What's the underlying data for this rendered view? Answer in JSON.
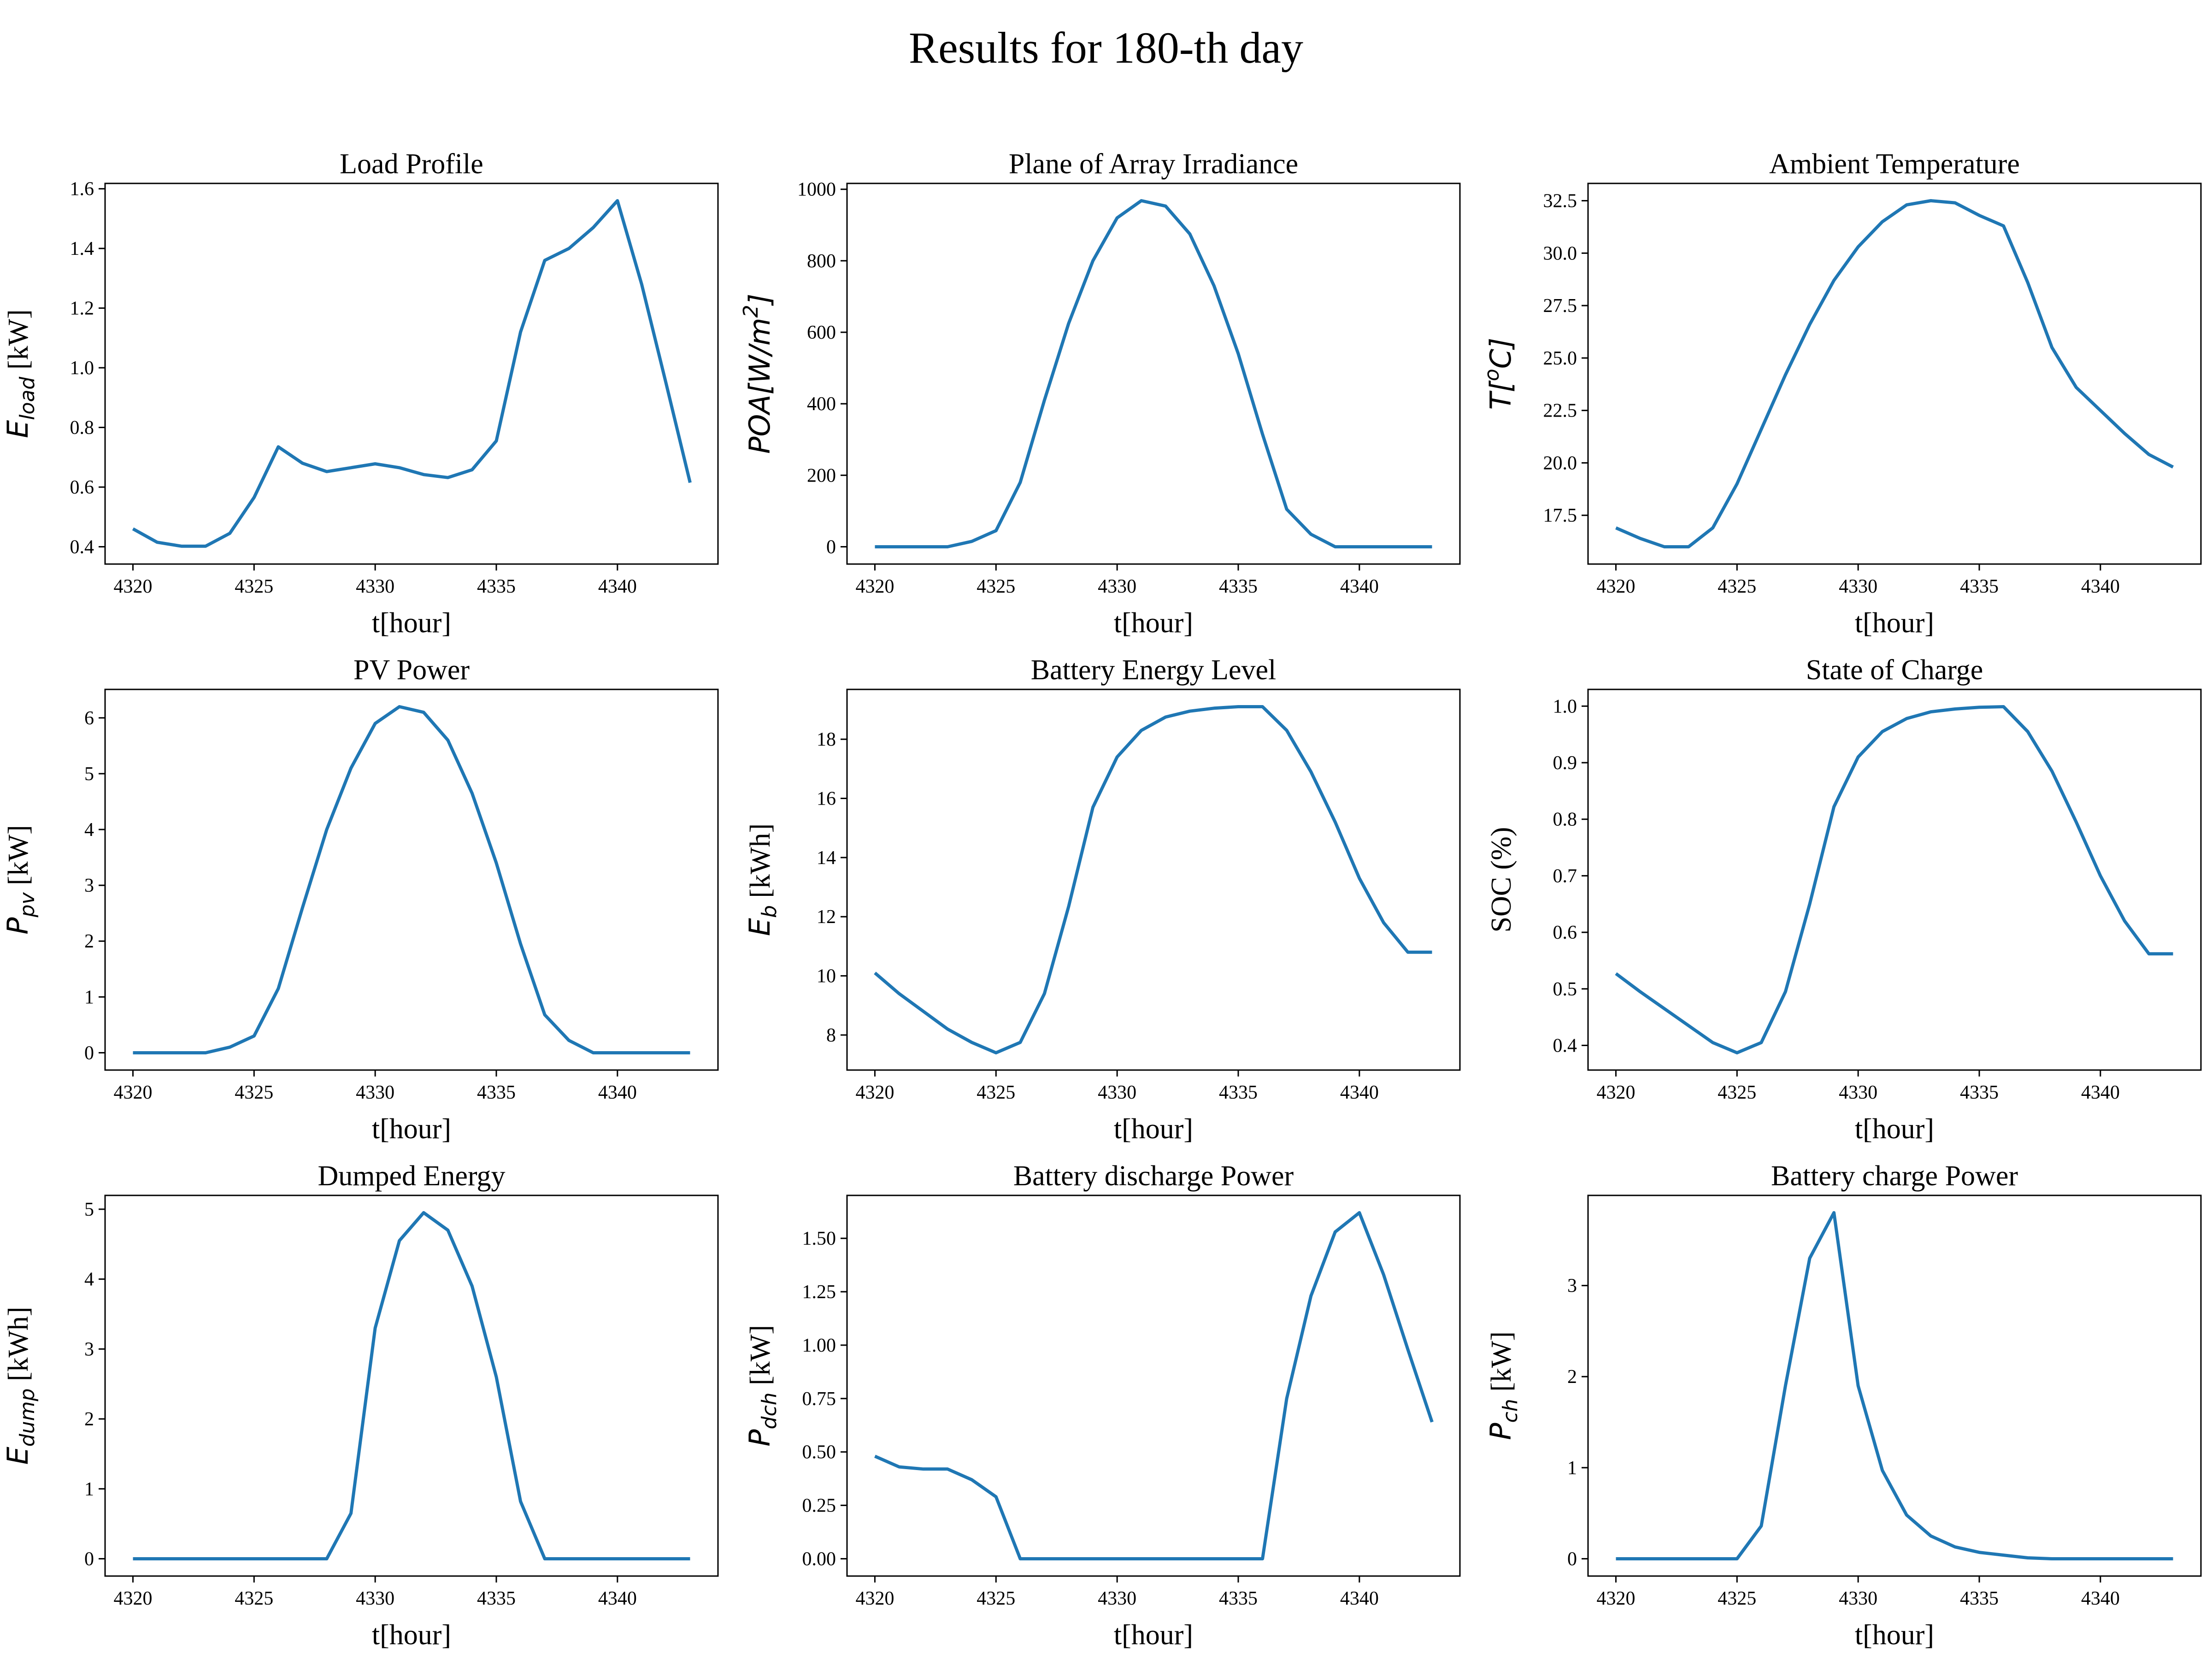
{
  "figure_title": "Results for 180-th day",
  "colors": {
    "line": "#1f77b4"
  },
  "chart_data": [
    {
      "type": "line",
      "title": "Load Profile",
      "xlabel": "t[hour]",
      "ylabel": {
        "main": "E",
        "sub": "load",
        "unit": " [kW]"
      },
      "x": [
        4320,
        4321,
        4322,
        4323,
        4324,
        4325,
        4326,
        4327,
        4328,
        4329,
        4330,
        4331,
        4332,
        4333,
        4334,
        4335,
        4336,
        4337,
        4338,
        4339,
        4340,
        4341,
        4342,
        4343
      ],
      "values": [
        0.46,
        0.415,
        0.402,
        0.402,
        0.445,
        0.565,
        0.735,
        0.68,
        0.652,
        0.665,
        0.678,
        0.665,
        0.642,
        0.632,
        0.658,
        0.755,
        1.12,
        1.36,
        1.4,
        1.47,
        1.56,
        1.28,
        0.95,
        0.615
      ],
      "xlim": [
        4318.85,
        4344.15
      ],
      "ylim": [
        0.342,
        1.618
      ],
      "xticks": [
        "4320",
        "4325",
        "4330",
        "4335",
        "4340"
      ],
      "yticks": [
        "0.4",
        "0.6",
        "0.8",
        "1.0",
        "1.2",
        "1.4",
        "1.6"
      ]
    },
    {
      "type": "line",
      "title": "Plane of Array Irradiance",
      "xlabel": "t[hour]",
      "ylabel": {
        "main": "POA[W/m",
        "sup": "2",
        "tail": "]"
      },
      "x": [
        4320,
        4321,
        4322,
        4323,
        4324,
        4325,
        4326,
        4327,
        4328,
        4329,
        4330,
        4331,
        4332,
        4333,
        4334,
        4335,
        4336,
        4337,
        4338,
        4339,
        4340,
        4341,
        4342,
        4343
      ],
      "values": [
        0,
        0,
        0,
        0,
        15,
        45,
        180,
        410,
        625,
        800,
        920,
        968,
        953,
        875,
        730,
        540,
        315,
        105,
        35,
        0,
        0,
        0,
        0,
        0
      ],
      "xlim": [
        4318.85,
        4344.15
      ],
      "ylim": [
        -48.4,
        1016.4
      ],
      "xticks": [
        "4320",
        "4325",
        "4330",
        "4335",
        "4340"
      ],
      "yticks": [
        "0",
        "200",
        "400",
        "600",
        "800",
        "1000"
      ]
    },
    {
      "type": "line",
      "title": "Ambient Temperature",
      "xlabel": "t[hour]",
      "ylabel": {
        "main": "T[",
        "sup": "o",
        "tail": "C]"
      },
      "x": [
        4320,
        4321,
        4322,
        4323,
        4324,
        4325,
        4326,
        4327,
        4328,
        4329,
        4330,
        4331,
        4332,
        4333,
        4334,
        4335,
        4336,
        4337,
        4338,
        4339,
        4340,
        4341,
        4342,
        4343
      ],
      "values": [
        16.9,
        16.4,
        16.0,
        16.0,
        16.9,
        19.0,
        21.6,
        24.2,
        26.6,
        28.7,
        30.3,
        31.5,
        32.3,
        32.5,
        32.4,
        31.8,
        31.3,
        28.6,
        25.5,
        23.6,
        22.5,
        21.4,
        20.4,
        19.8
      ],
      "xlim": [
        4318.85,
        4344.15
      ],
      "ylim": [
        15.175,
        33.325
      ],
      "xticks": [
        "4320",
        "4325",
        "4330",
        "4335",
        "4340"
      ],
      "yticks": [
        "17.5",
        "20.0",
        "22.5",
        "25.0",
        "27.5",
        "30.0",
        "32.5"
      ]
    },
    {
      "type": "line",
      "title": "PV Power",
      "xlabel": "t[hour]",
      "ylabel": {
        "main": "P",
        "sub": "pv",
        "unit": " [kW]"
      },
      "x": [
        4320,
        4321,
        4322,
        4323,
        4324,
        4325,
        4326,
        4327,
        4328,
        4329,
        4330,
        4331,
        4332,
        4333,
        4334,
        4335,
        4336,
        4337,
        4338,
        4339,
        4340,
        4341,
        4342,
        4343
      ],
      "values": [
        0,
        0,
        0,
        0,
        0.1,
        0.3,
        1.15,
        2.6,
        4.0,
        5.1,
        5.9,
        6.2,
        6.1,
        5.6,
        4.65,
        3.4,
        1.95,
        0.68,
        0.22,
        0,
        0,
        0,
        0,
        0
      ],
      "xlim": [
        4318.85,
        4344.15
      ],
      "ylim": [
        -0.31,
        6.51
      ],
      "xticks": [
        "4320",
        "4325",
        "4330",
        "4335",
        "4340"
      ],
      "yticks": [
        "0",
        "1",
        "2",
        "3",
        "4",
        "5",
        "6"
      ]
    },
    {
      "type": "line",
      "title": "Battery Energy Level",
      "xlabel": "t[hour]",
      "ylabel": {
        "main": "E",
        "sub": "b",
        "unit": " [kWh]"
      },
      "x": [
        4320,
        4321,
        4322,
        4323,
        4324,
        4325,
        4326,
        4327,
        4328,
        4329,
        4330,
        4331,
        4332,
        4333,
        4334,
        4335,
        4336,
        4337,
        4338,
        4339,
        4340,
        4341,
        4342,
        4343
      ],
      "values": [
        10.1,
        9.4,
        8.8,
        8.2,
        7.75,
        7.4,
        7.75,
        9.4,
        12.35,
        15.7,
        17.4,
        18.3,
        18.75,
        18.95,
        19.05,
        19.1,
        19.1,
        18.3,
        16.9,
        15.2,
        13.3,
        11.8,
        10.8,
        10.8
      ],
      "xlim": [
        4318.85,
        4344.15
      ],
      "ylim": [
        6.815,
        19.685
      ],
      "xticks": [
        "4320",
        "4325",
        "4330",
        "4335",
        "4340"
      ],
      "yticks": [
        "8",
        "10",
        "12",
        "14",
        "16",
        "18"
      ]
    },
    {
      "type": "line",
      "title": "State of Charge",
      "xlabel": "t[hour]",
      "ylabel": {
        "main": "SOC (%)"
      },
      "x": [
        4320,
        4321,
        4322,
        4323,
        4324,
        4325,
        4326,
        4327,
        4328,
        4329,
        4330,
        4331,
        4332,
        4333,
        4334,
        4335,
        4336,
        4337,
        4338,
        4339,
        4340,
        4341,
        4342,
        4343
      ],
      "values": [
        0.527,
        0.495,
        0.465,
        0.435,
        0.405,
        0.387,
        0.405,
        0.495,
        0.65,
        0.822,
        0.91,
        0.955,
        0.978,
        0.99,
        0.995,
        0.998,
        0.999,
        0.955,
        0.885,
        0.795,
        0.7,
        0.62,
        0.562,
        0.562
      ],
      "xlim": [
        4318.85,
        4344.15
      ],
      "ylim": [
        0.3564,
        1.0296
      ],
      "xticks": [
        "4320",
        "4325",
        "4330",
        "4335",
        "4340"
      ],
      "yticks": [
        "0.4",
        "0.5",
        "0.6",
        "0.7",
        "0.8",
        "0.9",
        "1.0"
      ]
    },
    {
      "type": "line",
      "title": "Dumped Energy",
      "xlabel": "t[hour]",
      "ylabel": {
        "main": "E",
        "sub": "dump",
        "unit": " [kWh]"
      },
      "x": [
        4320,
        4321,
        4322,
        4323,
        4324,
        4325,
        4326,
        4327,
        4328,
        4329,
        4330,
        4331,
        4332,
        4333,
        4334,
        4335,
        4336,
        4337,
        4338,
        4339,
        4340,
        4341,
        4342,
        4343
      ],
      "values": [
        0,
        0,
        0,
        0,
        0,
        0,
        0,
        0,
        0,
        0.65,
        3.3,
        4.55,
        4.95,
        4.7,
        3.9,
        2.6,
        0.82,
        0,
        0,
        0,
        0,
        0,
        0,
        0
      ],
      "xlim": [
        4318.85,
        4344.15
      ],
      "ylim": [
        -0.2475,
        5.1975
      ],
      "xticks": [
        "4320",
        "4325",
        "4330",
        "4335",
        "4340"
      ],
      "yticks": [
        "0",
        "1",
        "2",
        "3",
        "4",
        "5"
      ]
    },
    {
      "type": "line",
      "title": "Battery discharge Power",
      "xlabel": "t[hour]",
      "ylabel": {
        "main": "P",
        "sub": "dch",
        "unit": " [kW]"
      },
      "x": [
        4320,
        4321,
        4322,
        4323,
        4324,
        4325,
        4326,
        4327,
        4328,
        4329,
        4330,
        4331,
        4332,
        4333,
        4334,
        4335,
        4336,
        4337,
        4338,
        4339,
        4340,
        4341,
        4342,
        4343
      ],
      "values": [
        0.48,
        0.43,
        0.42,
        0.42,
        0.37,
        0.29,
        0,
        0,
        0,
        0,
        0,
        0,
        0,
        0,
        0,
        0,
        0,
        0.75,
        1.23,
        1.53,
        1.62,
        1.33,
        0.98,
        0.64
      ],
      "xlim": [
        4318.85,
        4344.15
      ],
      "ylim": [
        -0.081,
        1.701
      ],
      "xticks": [
        "4320",
        "4325",
        "4330",
        "4335",
        "4340"
      ],
      "yticks": [
        "0.00",
        "0.25",
        "0.50",
        "0.75",
        "1.00",
        "1.25",
        "1.50"
      ]
    },
    {
      "type": "line",
      "title": "Battery charge Power",
      "xlabel": "t[hour]",
      "ylabel": {
        "main": "P",
        "sub": "ch",
        "unit": " [kW]"
      },
      "x": [
        4320,
        4321,
        4322,
        4323,
        4324,
        4325,
        4326,
        4327,
        4328,
        4329,
        4330,
        4331,
        4332,
        4333,
        4334,
        4335,
        4336,
        4337,
        4338,
        4339,
        4340,
        4341,
        4342,
        4343
      ],
      "values": [
        0,
        0,
        0,
        0,
        0,
        0,
        0.36,
        1.9,
        3.3,
        3.8,
        1.9,
        0.97,
        0.48,
        0.25,
        0.13,
        0.07,
        0.04,
        0.01,
        0,
        0,
        0,
        0,
        0,
        0
      ],
      "xlim": [
        4318.85,
        4344.15
      ],
      "ylim": [
        -0.19,
        3.99
      ],
      "xticks": [
        "4320",
        "4325",
        "4330",
        "4335",
        "4340"
      ],
      "yticks": [
        "0",
        "1",
        "2",
        "3"
      ]
    }
  ]
}
